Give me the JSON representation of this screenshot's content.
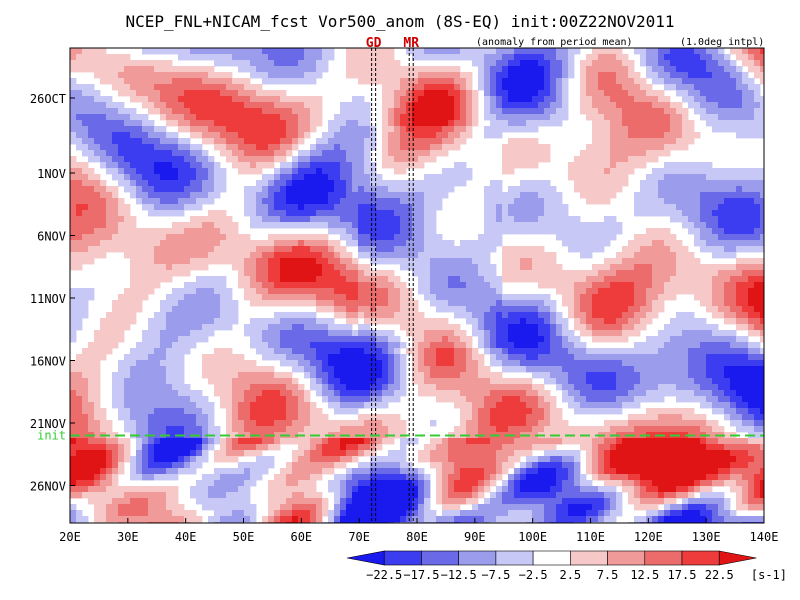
{
  "chart_data": {
    "type": "heatmap",
    "title": "NCEP_FNL+NICAM_fcst Vor500_anom (8S-EQ) init:00Z22NOV2011",
    "subtitle_left": "(anomaly from period mean)",
    "subtitle_right": "(1.0deg intpl)",
    "x_axis": {
      "range": [
        20,
        140
      ],
      "ticks": [
        20,
        30,
        40,
        50,
        60,
        70,
        80,
        90,
        100,
        110,
        120,
        130,
        140
      ],
      "tick_labels": [
        "20E",
        "30E",
        "40E",
        "50E",
        "60E",
        "70E",
        "80E",
        "90E",
        "100E",
        "110E",
        "120E",
        "130E",
        "140E"
      ]
    },
    "y_axis": {
      "range_days": [
        "2011-10-22",
        "2011-11-29"
      ],
      "ticks": [
        "2011-10-26",
        "2011-11-01",
        "2011-11-06",
        "2011-11-11",
        "2011-11-16",
        "2011-11-21",
        "2011-11-26"
      ],
      "tick_labels": [
        "26OCT",
        "1NOV",
        "6NOV",
        "11NOV",
        "16NOV",
        "21NOV",
        "26NOV"
      ],
      "direction": "time increases downward"
    },
    "markers": [
      {
        "label": "GD",
        "lon": 72.5,
        "color": "#cc0000"
      },
      {
        "label": "MR",
        "lon": 79,
        "color": "#cc0000"
      }
    ],
    "init_line": {
      "label": "init",
      "date": "2011-11-22",
      "color": "#33cc33"
    },
    "colorbar": {
      "levels": [
        -22.5,
        -17.5,
        -12.5,
        -7.5,
        -2.5,
        2.5,
        7.5,
        12.5,
        17.5,
        22.5
      ],
      "level_labels": [
        "−22.5",
        "−17.5",
        "−12.5",
        "−7.5",
        "−2.5",
        "2.5",
        "7.5",
        "12.5",
        "17.5",
        "22.5"
      ],
      "unit": "[s-1]",
      "colors": [
        "#1a1aee",
        "#3c3cf0",
        "#6a6ae8",
        "#9c9cec",
        "#c8c8f6",
        "#ffffff",
        "#f6c8c8",
        "#f09a9a",
        "#ec6c6c",
        "#ee3c3c",
        "#e01414"
      ]
    }
  }
}
